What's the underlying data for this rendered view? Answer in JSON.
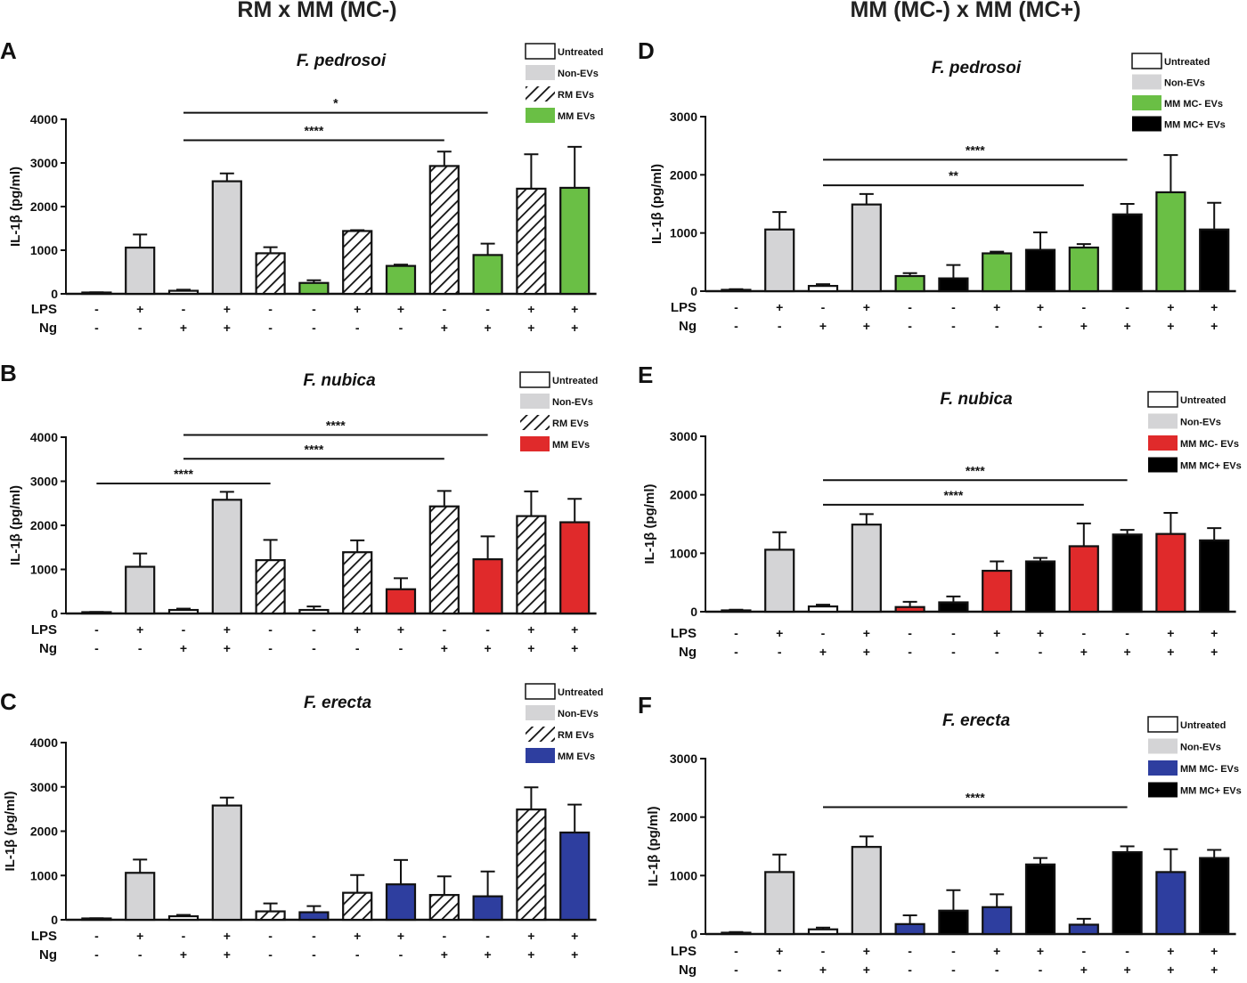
{
  "column_titles": {
    "left": "RM x MM (MC-)",
    "right": "MM (MC-) x MM (MC+)"
  },
  "colors": {
    "untreated": "#ffffff",
    "non_evs": "#d4d4d6",
    "green": "#6abf45",
    "red": "#e02a2b",
    "blue": "#2e3e9f",
    "black": "#000000"
  },
  "chart_data": [
    {
      "id": "A",
      "letter": "A",
      "type": "bar",
      "title": "F. pedrosoi",
      "ylabel": "IL-1β (pg/ml)",
      "ylim": [
        0,
        4000
      ],
      "yticks": [
        0,
        1000,
        2000,
        3000,
        4000
      ],
      "legend": [
        {
          "label": "Untreated",
          "style": "untreated"
        },
        {
          "label": "Non-EVs",
          "style": "non_evs"
        },
        {
          "label": "RM EVs",
          "style": "hatch"
        },
        {
          "label": "MM EVs",
          "style": "green"
        }
      ],
      "bars": [
        {
          "value": 20,
          "error": 15,
          "style": "untreated"
        },
        {
          "value": 1060,
          "error": 300,
          "style": "non_evs"
        },
        {
          "value": 70,
          "error": 25,
          "style": "untreated"
        },
        {
          "value": 2580,
          "error": 180,
          "style": "non_evs"
        },
        {
          "value": 930,
          "error": 140,
          "style": "hatch"
        },
        {
          "value": 250,
          "error": 60,
          "style": "green"
        },
        {
          "value": 1440,
          "error": 20,
          "style": "hatch"
        },
        {
          "value": 640,
          "error": 30,
          "style": "green"
        },
        {
          "value": 2930,
          "error": 330,
          "style": "hatch"
        },
        {
          "value": 890,
          "error": 260,
          "style": "green"
        },
        {
          "value": 2410,
          "error": 790,
          "style": "hatch"
        },
        {
          "value": 2430,
          "error": 940,
          "style": "green"
        }
      ],
      "conditions": {
        "LPS": [
          "-",
          "+",
          "-",
          "+",
          "-",
          "-",
          "+",
          "+",
          "-",
          "-",
          "+",
          "+"
        ],
        "Ng": [
          "-",
          "-",
          "+",
          "+",
          "-",
          "-",
          "-",
          "-",
          "+",
          "+",
          "+",
          "+"
        ]
      },
      "significance": [
        {
          "from": 2,
          "to": 9,
          "level": 4150,
          "label": "*"
        },
        {
          "from": 2,
          "to": 8,
          "level": 3520,
          "label": "****"
        }
      ]
    },
    {
      "id": "B",
      "letter": "B",
      "type": "bar",
      "title": "F. nubica",
      "ylabel": "IL-1β (pg/ml)",
      "ylim": [
        0,
        4000
      ],
      "yticks": [
        0,
        1000,
        2000,
        3000,
        4000
      ],
      "legend": [
        {
          "label": "Untreated",
          "style": "untreated"
        },
        {
          "label": "Non-EVs",
          "style": "non_evs"
        },
        {
          "label": "RM EVs",
          "style": "hatch"
        },
        {
          "label": "MM EVs",
          "style": "red"
        }
      ],
      "bars": [
        {
          "value": 20,
          "error": 15,
          "style": "untreated"
        },
        {
          "value": 1060,
          "error": 300,
          "style": "non_evs"
        },
        {
          "value": 80,
          "error": 30,
          "style": "untreated"
        },
        {
          "value": 2580,
          "error": 180,
          "style": "non_evs"
        },
        {
          "value": 1210,
          "error": 460,
          "style": "hatch"
        },
        {
          "value": 80,
          "error": 80,
          "style": "untreated"
        },
        {
          "value": 1390,
          "error": 270,
          "style": "hatch"
        },
        {
          "value": 550,
          "error": 250,
          "style": "red"
        },
        {
          "value": 2430,
          "error": 350,
          "style": "hatch"
        },
        {
          "value": 1230,
          "error": 520,
          "style": "red"
        },
        {
          "value": 2210,
          "error": 560,
          "style": "hatch"
        },
        {
          "value": 2070,
          "error": 530,
          "style": "red"
        }
      ],
      "conditions": {
        "LPS": [
          "-",
          "+",
          "-",
          "+",
          "-",
          "-",
          "+",
          "+",
          "-",
          "-",
          "+",
          "+"
        ],
        "Ng": [
          "-",
          "-",
          "+",
          "+",
          "-",
          "-",
          "-",
          "-",
          "+",
          "+",
          "+",
          "+"
        ]
      },
      "significance": [
        {
          "from": 2,
          "to": 9,
          "level": 4050,
          "label": "****"
        },
        {
          "from": 2,
          "to": 8,
          "level": 3510,
          "label": "****"
        },
        {
          "from": 0,
          "to": 4,
          "level": 2950,
          "label": "****"
        }
      ]
    },
    {
      "id": "C",
      "letter": "C",
      "type": "bar",
      "title": "F. erecta",
      "ylabel": "IL-1β (pg/ml)",
      "ylim": [
        0,
        4000
      ],
      "yticks": [
        0,
        1000,
        2000,
        3000,
        4000
      ],
      "legend": [
        {
          "label": "Untreated",
          "style": "untreated"
        },
        {
          "label": "Non-EVs",
          "style": "non_evs"
        },
        {
          "label": "RM EVs",
          "style": "hatch"
        },
        {
          "label": "MM EVs",
          "style": "blue"
        }
      ],
      "bars": [
        {
          "value": 20,
          "error": 15,
          "style": "untreated"
        },
        {
          "value": 1060,
          "error": 300,
          "style": "non_evs"
        },
        {
          "value": 80,
          "error": 30,
          "style": "untreated"
        },
        {
          "value": 2580,
          "error": 180,
          "style": "non_evs"
        },
        {
          "value": 190,
          "error": 180,
          "style": "hatch"
        },
        {
          "value": 170,
          "error": 140,
          "style": "blue"
        },
        {
          "value": 610,
          "error": 400,
          "style": "hatch"
        },
        {
          "value": 800,
          "error": 550,
          "style": "blue"
        },
        {
          "value": 560,
          "error": 420,
          "style": "hatch"
        },
        {
          "value": 530,
          "error": 560,
          "style": "blue"
        },
        {
          "value": 2490,
          "error": 500,
          "style": "hatch"
        },
        {
          "value": 1970,
          "error": 630,
          "style": "blue"
        }
      ],
      "conditions": {
        "LPS": [
          "-",
          "+",
          "-",
          "+",
          "-",
          "-",
          "+",
          "+",
          "-",
          "-",
          "+",
          "+"
        ],
        "Ng": [
          "-",
          "-",
          "+",
          "+",
          "-",
          "-",
          "-",
          "-",
          "+",
          "+",
          "+",
          "+"
        ]
      },
      "significance": []
    },
    {
      "id": "D",
      "letter": "D",
      "type": "bar",
      "title": "F. pedrosoi",
      "ylabel": "IL-1β (pg/ml)",
      "ylim": [
        0,
        3000
      ],
      "yticks": [
        0,
        1000,
        2000,
        3000
      ],
      "legend": [
        {
          "label": "Untreated",
          "style": "untreated"
        },
        {
          "label": "Non-EVs",
          "style": "non_evs"
        },
        {
          "label": "MM MC- EVs",
          "style": "green"
        },
        {
          "label": "MM MC+ EVs",
          "style": "black"
        }
      ],
      "bars": [
        {
          "value": 20,
          "error": 15,
          "style": "untreated"
        },
        {
          "value": 1060,
          "error": 300,
          "style": "non_evs"
        },
        {
          "value": 90,
          "error": 30,
          "style": "untreated"
        },
        {
          "value": 1490,
          "error": 180,
          "style": "non_evs"
        },
        {
          "value": 260,
          "error": 50,
          "style": "green"
        },
        {
          "value": 220,
          "error": 230,
          "style": "black"
        },
        {
          "value": 650,
          "error": 30,
          "style": "green"
        },
        {
          "value": 710,
          "error": 300,
          "style": "black"
        },
        {
          "value": 750,
          "error": 60,
          "style": "green"
        },
        {
          "value": 1320,
          "error": 180,
          "style": "black"
        },
        {
          "value": 1700,
          "error": 640,
          "style": "green"
        },
        {
          "value": 1060,
          "error": 460,
          "style": "black"
        }
      ],
      "conditions": {
        "LPS": [
          "-",
          "+",
          "-",
          "+",
          "-",
          "-",
          "+",
          "+",
          "-",
          "-",
          "+",
          "+"
        ],
        "Ng": [
          "-",
          "-",
          "+",
          "+",
          "-",
          "-",
          "-",
          "-",
          "+",
          "+",
          "+",
          "+"
        ]
      },
      "significance": [
        {
          "from": 2,
          "to": 9,
          "level": 2260,
          "label": "****"
        },
        {
          "from": 2,
          "to": 8,
          "level": 1820,
          "label": "**"
        }
      ]
    },
    {
      "id": "E",
      "letter": "E",
      "type": "bar",
      "title": "F. nubica",
      "ylabel": "IL-1β (pg/ml)",
      "ylim": [
        0,
        3000
      ],
      "yticks": [
        0,
        1000,
        2000,
        3000
      ],
      "legend": [
        {
          "label": "Untreated",
          "style": "untreated"
        },
        {
          "label": "Non-EVs",
          "style": "non_evs"
        },
        {
          "label": "MM MC- EVs",
          "style": "red"
        },
        {
          "label": "MM MC+ EVs",
          "style": "black"
        }
      ],
      "bars": [
        {
          "value": 20,
          "error": 15,
          "style": "untreated"
        },
        {
          "value": 1060,
          "error": 300,
          "style": "non_evs"
        },
        {
          "value": 90,
          "error": 30,
          "style": "untreated"
        },
        {
          "value": 1490,
          "error": 180,
          "style": "non_evs"
        },
        {
          "value": 80,
          "error": 90,
          "style": "red"
        },
        {
          "value": 160,
          "error": 100,
          "style": "black"
        },
        {
          "value": 700,
          "error": 160,
          "style": "red"
        },
        {
          "value": 860,
          "error": 60,
          "style": "black"
        },
        {
          "value": 1120,
          "error": 390,
          "style": "red"
        },
        {
          "value": 1320,
          "error": 80,
          "style": "black"
        },
        {
          "value": 1330,
          "error": 360,
          "style": "red"
        },
        {
          "value": 1220,
          "error": 210,
          "style": "black"
        }
      ],
      "conditions": {
        "LPS": [
          "-",
          "+",
          "-",
          "+",
          "-",
          "-",
          "+",
          "+",
          "-",
          "-",
          "+",
          "+"
        ],
        "Ng": [
          "-",
          "-",
          "+",
          "+",
          "-",
          "-",
          "-",
          "-",
          "+",
          "+",
          "+",
          "+"
        ]
      },
      "significance": [
        {
          "from": 2,
          "to": 9,
          "level": 2250,
          "label": "****"
        },
        {
          "from": 2,
          "to": 8,
          "level": 1830,
          "label": "****"
        }
      ]
    },
    {
      "id": "F",
      "letter": "F",
      "type": "bar",
      "title": "F. erecta",
      "ylabel": "IL-1β (pg/ml)",
      "ylim": [
        0,
        3000
      ],
      "yticks": [
        0,
        1000,
        2000,
        3000
      ],
      "legend": [
        {
          "label": "Untreated",
          "style": "untreated"
        },
        {
          "label": "Non-EVs",
          "style": "non_evs"
        },
        {
          "label": "MM MC- EVs",
          "style": "blue"
        },
        {
          "label": "MM MC+ EVs",
          "style": "black"
        }
      ],
      "bars": [
        {
          "value": 20,
          "error": 15,
          "style": "untreated"
        },
        {
          "value": 1060,
          "error": 300,
          "style": "non_evs"
        },
        {
          "value": 80,
          "error": 30,
          "style": "untreated"
        },
        {
          "value": 1490,
          "error": 180,
          "style": "non_evs"
        },
        {
          "value": 170,
          "error": 150,
          "style": "blue"
        },
        {
          "value": 400,
          "error": 350,
          "style": "black"
        },
        {
          "value": 460,
          "error": 220,
          "style": "blue"
        },
        {
          "value": 1190,
          "error": 110,
          "style": "black"
        },
        {
          "value": 160,
          "error": 100,
          "style": "blue"
        },
        {
          "value": 1400,
          "error": 100,
          "style": "black"
        },
        {
          "value": 1060,
          "error": 390,
          "style": "blue"
        },
        {
          "value": 1300,
          "error": 140,
          "style": "black"
        }
      ],
      "conditions": {
        "LPS": [
          "-",
          "+",
          "-",
          "+",
          "-",
          "-",
          "+",
          "+",
          "-",
          "-",
          "+",
          "+"
        ],
        "Ng": [
          "-",
          "-",
          "+",
          "+",
          "-",
          "-",
          "-",
          "-",
          "+",
          "+",
          "+",
          "+"
        ]
      },
      "significance": [
        {
          "from": 2,
          "to": 9,
          "level": 2170,
          "label": "****"
        }
      ]
    }
  ]
}
